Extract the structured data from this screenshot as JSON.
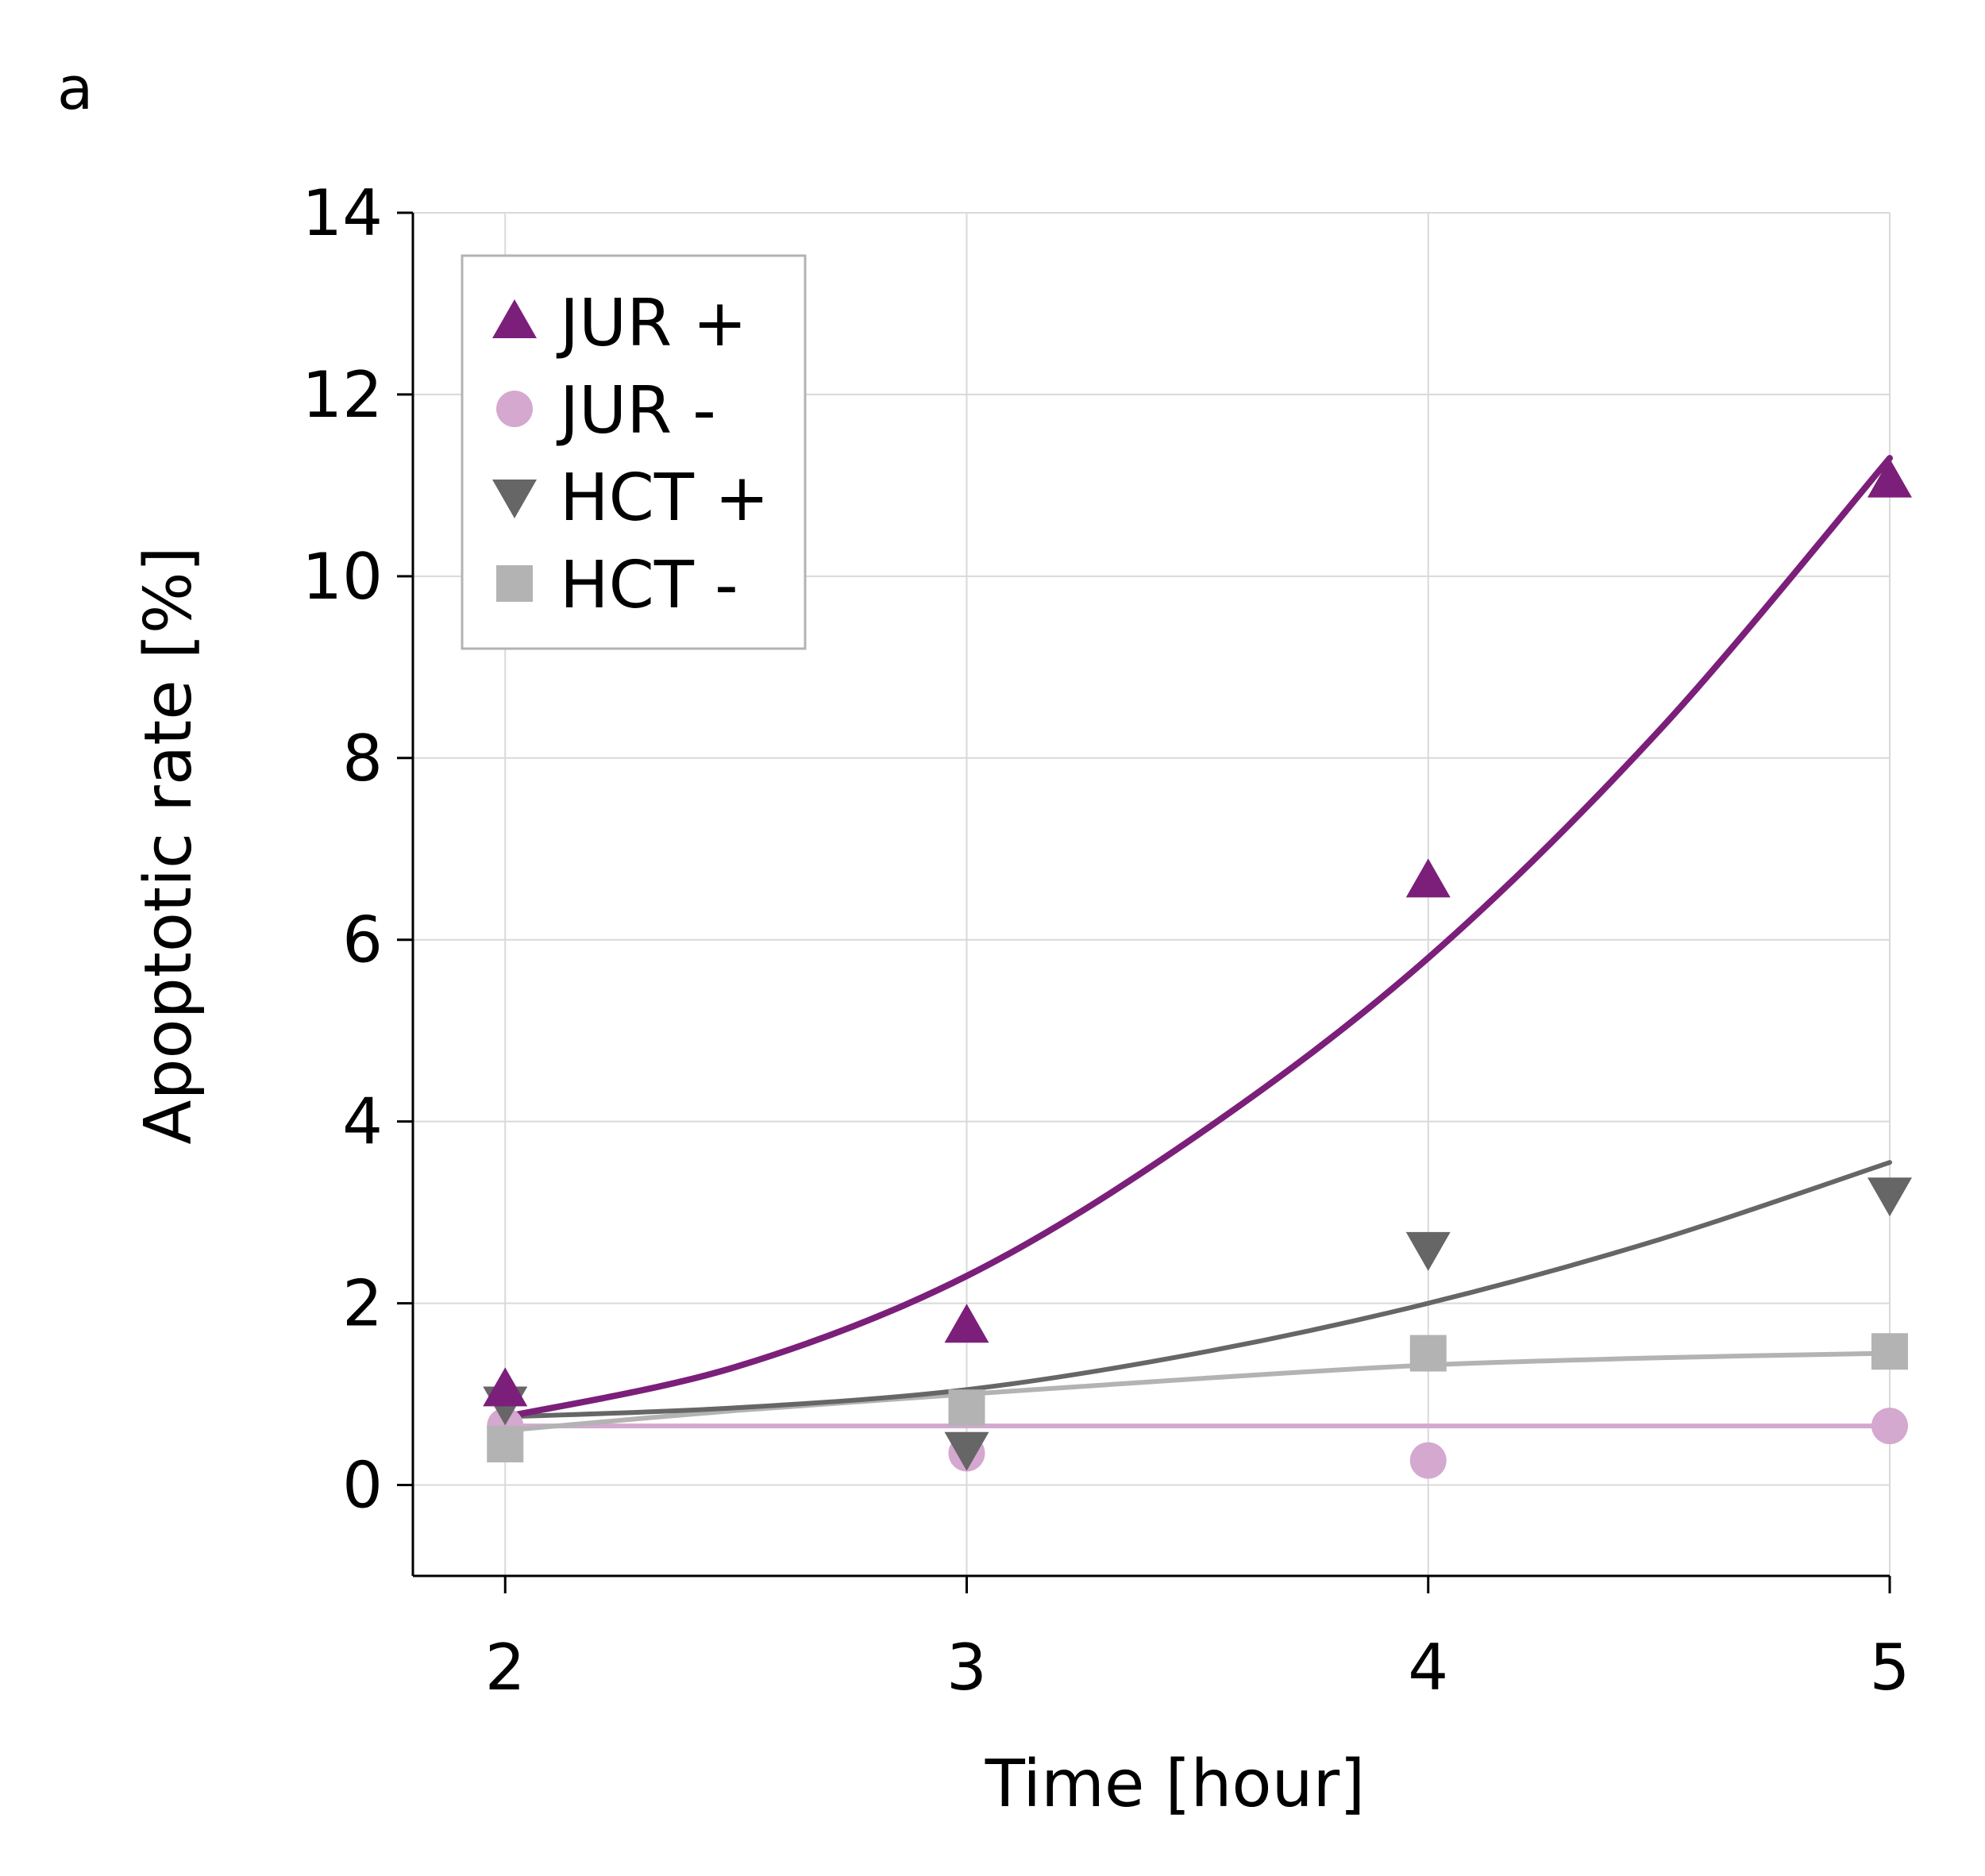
{
  "panel_label": "a",
  "chart_data": {
    "type": "scatter",
    "xlabel": "Time [hour]",
    "ylabel": "Apoptotic rate [%]",
    "xlim": [
      1.8,
      5
    ],
    "ylim": [
      -1,
      14
    ],
    "x_ticks": [
      2,
      3,
      4,
      5
    ],
    "y_ticks": [
      0,
      2,
      4,
      6,
      8,
      10,
      12,
      14
    ],
    "grid": true,
    "legend_position": "top-left",
    "series": [
      {
        "name": "JUR +",
        "marker": "triangle-up",
        "color": "#7b1f7a",
        "x": [
          2,
          3,
          4,
          5
        ],
        "y": [
          1.05,
          1.75,
          6.65,
          11.05
        ],
        "trend": {
          "x": [
            2,
            2.5,
            3,
            3.5,
            4,
            4.5,
            5
          ],
          "y": [
            0.75,
            1.3,
            2.3,
            3.85,
            5.8,
            8.3,
            11.3
          ]
        }
      },
      {
        "name": "JUR -",
        "marker": "circle",
        "color": "#d4a8cf",
        "x": [
          2,
          3,
          4,
          5
        ],
        "y": [
          0.65,
          0.35,
          0.27,
          0.65
        ],
        "trend": {
          "x": [
            2,
            5
          ],
          "y": [
            0.65,
            0.65
          ]
        }
      },
      {
        "name": "HCT +",
        "marker": "triangle-down",
        "color": "#666666",
        "x": [
          2,
          3,
          4,
          5
        ],
        "y": [
          0.9,
          0.4,
          2.6,
          3.2
        ],
        "trend": {
          "x": [
            2,
            2.5,
            3,
            3.5,
            4,
            4.5,
            5
          ],
          "y": [
            0.75,
            0.85,
            1.05,
            1.45,
            2.0,
            2.7,
            3.55
          ]
        }
      },
      {
        "name": "HCT -",
        "marker": "square",
        "color": "#b3b3b3",
        "x": [
          2,
          3,
          4,
          5
        ],
        "y": [
          0.45,
          0.85,
          1.45,
          1.47
        ],
        "trend": {
          "x": [
            2,
            2.5,
            3,
            3.5,
            4,
            4.5,
            5
          ],
          "y": [
            0.6,
            0.82,
            1.0,
            1.17,
            1.32,
            1.4,
            1.45
          ]
        }
      }
    ]
  }
}
